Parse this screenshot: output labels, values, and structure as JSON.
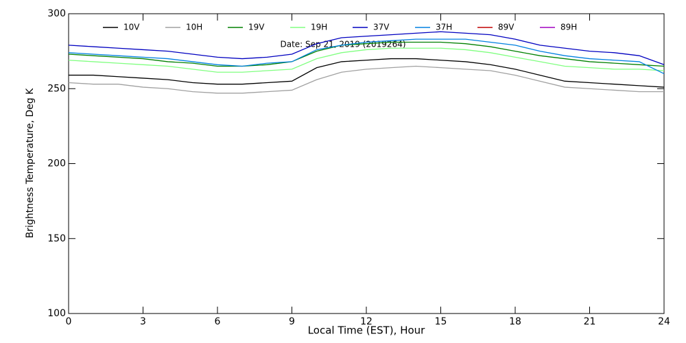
{
  "chart_data": {
    "type": "line",
    "annotation": "Date: Sep 21, 2019 (2019264)",
    "x_label": "Local Time (EST), Hour",
    "y_label": "Brightness Temperature, Deg K",
    "x": [
      0,
      1,
      2,
      3,
      4,
      5,
      6,
      7,
      8,
      9,
      10,
      11,
      12,
      13,
      14,
      15,
      16,
      17,
      18,
      19,
      20,
      21,
      22,
      23,
      24
    ],
    "series": [
      {
        "name": "10V",
        "color": "#000000",
        "values": [
          259,
          259,
          258,
          257,
          256,
          254,
          253,
          253,
          254,
          255,
          264,
          268,
          269,
          270,
          270,
          269,
          268,
          266,
          263,
          259,
          255,
          254,
          253,
          252,
          251
        ]
      },
      {
        "name": "10H",
        "color": "#a0a0a0",
        "values": [
          254,
          253,
          253,
          251,
          250,
          248,
          247,
          247,
          248,
          249,
          256,
          261,
          263,
          264,
          265,
          264,
          263,
          262,
          259,
          255,
          251,
          250,
          249,
          248,
          248
        ]
      },
      {
        "name": "19V",
        "color": "#008000",
        "values": [
          273,
          272,
          271,
          270,
          268,
          267,
          265,
          265,
          266,
          268,
          275,
          279,
          280,
          281,
          281,
          281,
          280,
          278,
          275,
          272,
          270,
          268,
          267,
          266,
          265
        ]
      },
      {
        "name": "19H",
        "color": "#80ff80",
        "values": [
          269,
          268,
          267,
          266,
          265,
          263,
          261,
          261,
          262,
          263,
          270,
          274,
          276,
          277,
          277,
          277,
          276,
          274,
          271,
          268,
          265,
          264,
          263,
          263,
          262
        ]
      },
      {
        "name": "37V",
        "color": "#0000c0",
        "values": [
          279,
          278,
          277,
          276,
          275,
          273,
          271,
          270,
          271,
          273,
          280,
          284,
          285,
          286,
          287,
          288,
          287,
          286,
          283,
          279,
          277,
          275,
          274,
          272,
          266
        ]
      },
      {
        "name": "37H",
        "color": "#0080e0",
        "values": [
          274,
          273,
          272,
          271,
          270,
          268,
          266,
          265,
          267,
          268,
          276,
          279,
          281,
          282,
          283,
          283,
          283,
          281,
          279,
          275,
          272,
          270,
          269,
          268,
          260
        ]
      },
      {
        "name": "89V",
        "color": "#c00000",
        "values": [
          null,
          null,
          null,
          null,
          null,
          null,
          null,
          null,
          null,
          null,
          null,
          null,
          null,
          null,
          null,
          null,
          null,
          null,
          null,
          null,
          null,
          null,
          null,
          null,
          null
        ]
      },
      {
        "name": "89H",
        "color": "#a000c0",
        "values": [
          null,
          null,
          null,
          null,
          null,
          null,
          null,
          null,
          null,
          null,
          null,
          null,
          null,
          null,
          null,
          null,
          null,
          null,
          null,
          null,
          null,
          null,
          null,
          null,
          null
        ]
      }
    ],
    "xlim": [
      0,
      24
    ],
    "xticks": [
      0,
      3,
      6,
      9,
      12,
      15,
      18,
      21,
      24
    ],
    "ylim": [
      100,
      300
    ],
    "yticks": [
      100,
      150,
      200,
      250,
      300
    ]
  }
}
